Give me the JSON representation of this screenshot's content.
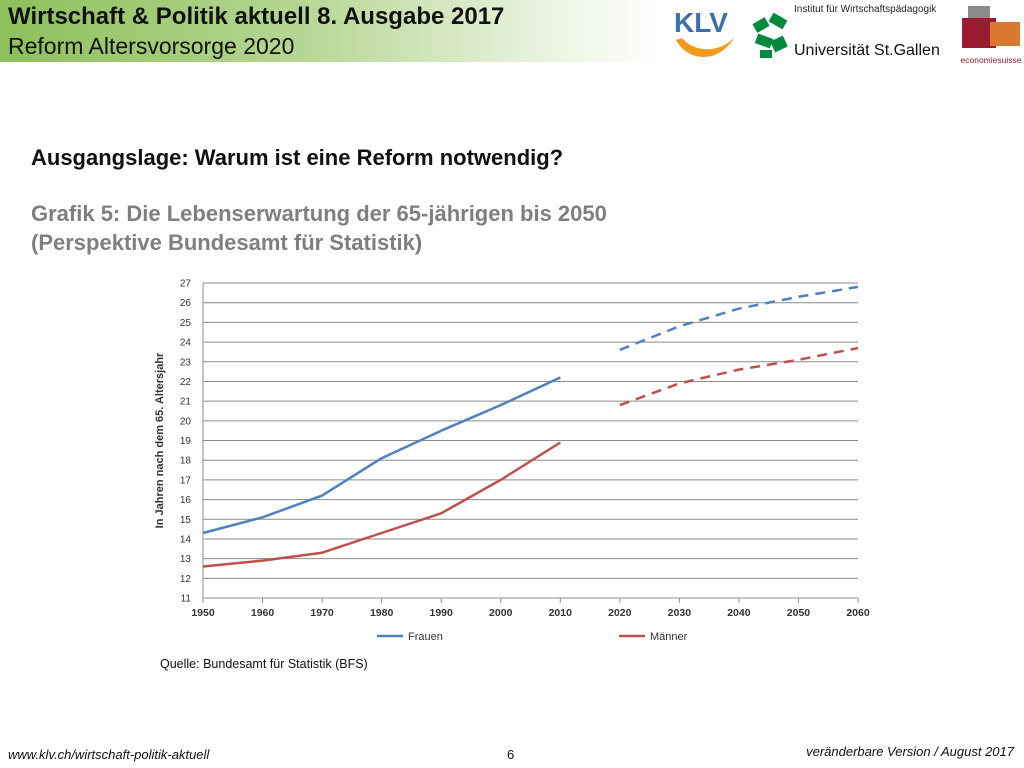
{
  "header": {
    "title": "Wirtschaft & Politik aktuell 8. Ausgabe 2017",
    "subtitle": "Reform Altersvorsorge 2020"
  },
  "logos": {
    "klv": {
      "text": "KLV",
      "icon": "klv-logo",
      "color": "#3a6fb0",
      "accent": "#f39a1e"
    },
    "unisg": {
      "institute": "Institut für Wirtschaftspädagogik",
      "name": "Universität St.Gallen",
      "color": "#008a3e"
    },
    "economiesuisse": {
      "text": "economiesuisse",
      "colors": [
        "#9b1b30",
        "#d9782f",
        "#8c8c8c"
      ]
    }
  },
  "heading": "Ausgangslage: Warum ist eine Reform notwendig?",
  "grafik": {
    "line1": "Grafik 5: Die Lebenserwartung der 65-jährigen bis 2050",
    "line2": "(Perspektive Bundesamt für Statistik)"
  },
  "chart_data": {
    "type": "line",
    "ylabel": "In Jahren nach dem 65. Altersjahr",
    "xlim": [
      1950,
      2060
    ],
    "ylim": [
      11,
      27
    ],
    "xticks": [
      "1950",
      "1960",
      "1970",
      "1980",
      "1990",
      "2000",
      "2010",
      "2020",
      "2030",
      "2040",
      "2050",
      "2060"
    ],
    "yticks": [
      "11",
      "12",
      "13",
      "14",
      "15",
      "16",
      "17",
      "18",
      "19",
      "20",
      "21",
      "22",
      "23",
      "24",
      "25",
      "26",
      "27"
    ],
    "grid": "horizontal",
    "legend_position": "bottom",
    "series": [
      {
        "name": "Frauen",
        "color": "#4f81bd",
        "observed": {
          "x": [
            1950,
            1960,
            1970,
            1980,
            1990,
            2000,
            2010
          ],
          "y": [
            14.3,
            15.1,
            16.2,
            18.1,
            19.5,
            20.8,
            22.2
          ]
        },
        "projected": {
          "x": [
            2020,
            2030,
            2040,
            2050,
            2060
          ],
          "y": [
            23.6,
            24.8,
            25.7,
            26.3,
            26.8
          ]
        }
      },
      {
        "name": "Männer",
        "color": "#c0504d",
        "observed": {
          "x": [
            1950,
            1960,
            1970,
            1980,
            1990,
            2000,
            2010
          ],
          "y": [
            12.6,
            12.9,
            13.3,
            14.3,
            15.3,
            17.0,
            18.9
          ]
        },
        "projected": {
          "x": [
            2020,
            2030,
            2040,
            2050,
            2060
          ],
          "y": [
            20.8,
            21.9,
            22.6,
            23.1,
            23.7
          ]
        }
      }
    ]
  },
  "source": "Quelle: Bundesamt für Statistik (BFS)",
  "footer": {
    "url": "www.klv.ch/wirtschaft-politik-aktuell",
    "page": "6",
    "version": "veränderbare Version / August 2017"
  }
}
